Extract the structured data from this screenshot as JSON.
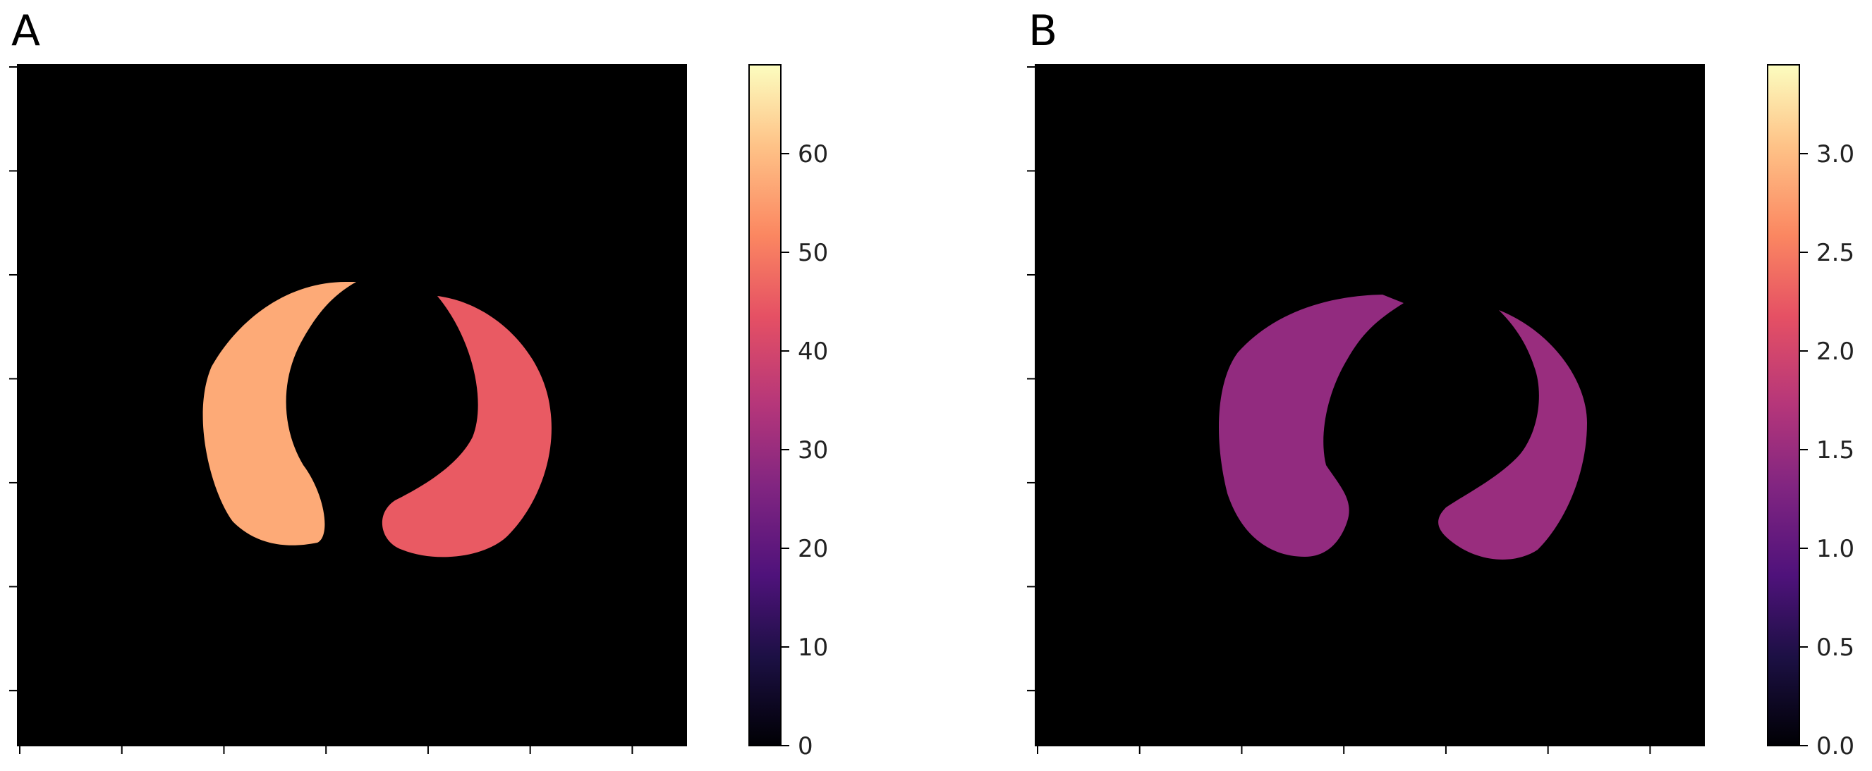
{
  "figure": {
    "panels": [
      {
        "label": "A"
      },
      {
        "label": "B"
      }
    ]
  },
  "colors": {
    "colormap": "magma",
    "background": "#000000",
    "axes_frame": "#000000"
  },
  "chart_data": [
    {
      "type": "heatmap",
      "panel": "A",
      "title": "",
      "xlabel": "",
      "ylabel": "",
      "x_tick_count": 7,
      "y_tick_count": 7,
      "x_tick_labels": [],
      "y_tick_labels": [],
      "colorbar": {
        "colormap": "magma",
        "min": 0,
        "max": 69,
        "ticks": [
          0,
          10,
          20,
          30,
          40,
          50,
          60
        ],
        "tick_labels": [
          "0",
          "10",
          "20",
          "30",
          "40",
          "50",
          "60"
        ]
      },
      "content": "lung-shaped intensity map",
      "regions": [
        {
          "name": "right-lung",
          "typical_value": 57
        },
        {
          "name": "left-lung",
          "typical_value": 45
        }
      ]
    },
    {
      "type": "heatmap",
      "panel": "B",
      "title": "",
      "xlabel": "",
      "ylabel": "",
      "x_tick_count": 7,
      "y_tick_count": 7,
      "x_tick_labels": [],
      "y_tick_labels": [],
      "colorbar": {
        "colormap": "magma",
        "min": 0.0,
        "max": 3.45,
        "ticks": [
          0.0,
          0.5,
          1.0,
          1.5,
          2.0,
          2.5,
          3.0
        ],
        "tick_labels": [
          "0.0",
          "0.5",
          "1.0",
          "1.5",
          "2.0",
          "2.5",
          "3.0"
        ]
      },
      "content": "lung-shaped textured map",
      "regions": [
        {
          "name": "right-lung",
          "typical_value": 1.45
        },
        {
          "name": "left-lung",
          "typical_value": 1.5
        }
      ]
    }
  ]
}
